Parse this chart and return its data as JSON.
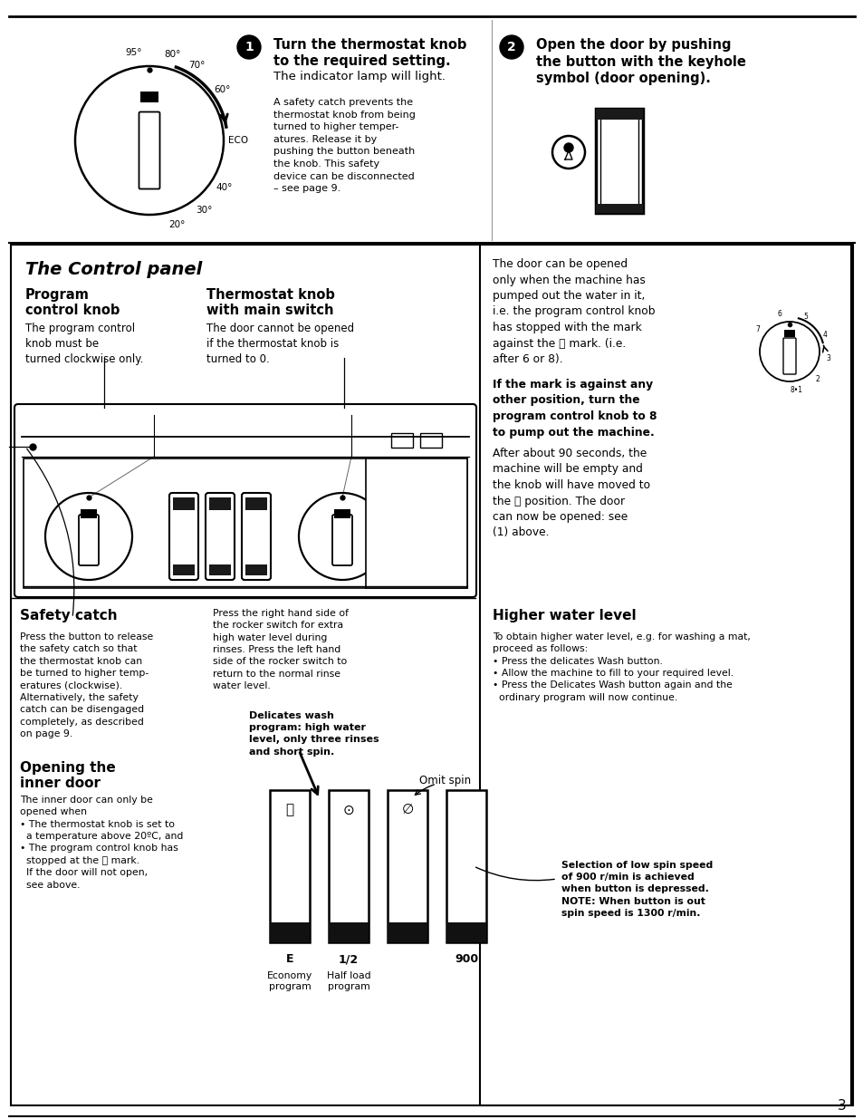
{
  "page_bg": "#ffffff",
  "page_number": "3",
  "top": {
    "step1_bold": "Turn the thermostat knob\nto the required setting.",
    "step1_normal": "The indicator lamp will light.",
    "step1_body": "A safety catch prevents the\nthermostat knob from being\nturned to higher temper-\natures. Release it by\npushing the button beneath\nthe knob. This safety\ndevice can be disconnected\n– see page 9.",
    "step2_bold": "Open the door by pushing\nthe button with the keyhole\nsymbol (door opening)."
  },
  "cp": {
    "title": "The Control panel",
    "prog_title": "Program\ncontrol knob",
    "prog_body": "The program control\nknob must be\nturned clockwise only.",
    "thermo_title": "Thermostat knob\nwith main switch",
    "thermo_body": "The door cannot be opened\nif the thermostat knob is\nturned to 0.",
    "rbox1": "The door can be opened\nonly when the machine has\npumped out the water in it,\ni.e. the program control knob\nhas stopped with the mark\nagainst the ⓘ mark. (i.e.\nafter 6 or 8).",
    "rbox2_bold": "If the mark is against any\nother position, turn the\nprogram control knob to 8\nto pump out the machine.",
    "rbox2_normal": "After about 90 seconds, the\nmachine will be empty and\nthe knob will have moved to\nthe ⓘ position. The door\ncan now be opened: see\n(1) above."
  },
  "bot": {
    "safety_title": "Safety catch",
    "safety_body": "Press the button to release\nthe safety catch so that\nthe thermostat knob can\nbe turned to higher temp-\neratures (clockwise).\nAlternatively, the safety\ncatch can be disengaged\ncompletely, as described\non page 9.",
    "rocker_text": "Press the right hand side of\nthe rocker switch for extra\nhigh water level during\nrinses. Press the left hand\nside of the rocker switch to\nreturn to the normal rinse\nwater level.",
    "delicates": "Delicates wash\nprogram: high water\nlevel, only three rinses\nand short spin.",
    "hw_title": "Higher water level",
    "hw_body": "To obtain higher water level, e.g. for washing a mat,\nproceed as follows:\n• Press the delicates Wash button.\n• Allow the machine to fill to your required level.\n• Press the Delicates Wash button again and the\n  ordinary program will now continue.",
    "inner_title": "Opening the\ninner door",
    "inner_body": "The inner door can only be\nopened when\n• The thermostat knob is set to\n  a temperature above 20ºC, and\n• The program control knob has\n  stopped at the ⓘ mark.\n  If the door will not open,\n  see above.",
    "spin_note": "Selection of low spin speed\nof 900 r/min is achieved\nwhen button is depressed.\nNOTE: When button is out\nspin speed is 1300 r/min."
  }
}
